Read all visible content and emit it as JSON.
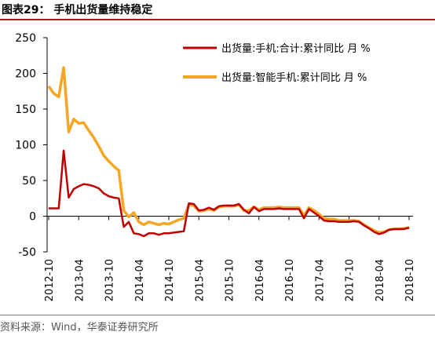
{
  "header": {
    "title": "图表29：  手机出货量维持稳定"
  },
  "footer": {
    "source": "资料来源：Wind，华泰证券研究所"
  },
  "chart_data": {
    "type": "line",
    "title": "",
    "xlabel": "",
    "ylabel": "",
    "ylim": [
      -50,
      250
    ],
    "yticks": [
      -50,
      0,
      50,
      100,
      150,
      200,
      250
    ],
    "xticks": [
      "2012-10",
      "2013-04",
      "2013-10",
      "2014-04",
      "2014-10",
      "2015-04",
      "2015-10",
      "2016-04",
      "2016-10",
      "2017-04",
      "2017-10",
      "2018-04",
      "2018-10"
    ],
    "grid": false,
    "legend_position": "top-right",
    "x": [
      "2012-10",
      "2012-11",
      "2012-12",
      "2013-01",
      "2013-02",
      "2013-03",
      "2013-04",
      "2013-05",
      "2013-06",
      "2013-07",
      "2013-08",
      "2013-09",
      "2013-10",
      "2013-11",
      "2013-12",
      "2014-01",
      "2014-02",
      "2014-03",
      "2014-04",
      "2014-05",
      "2014-06",
      "2014-07",
      "2014-08",
      "2014-09",
      "2014-10",
      "2014-11",
      "2014-12",
      "2015-01",
      "2015-02",
      "2015-03",
      "2015-04",
      "2015-05",
      "2015-06",
      "2015-07",
      "2015-08",
      "2015-09",
      "2015-10",
      "2015-11",
      "2015-12",
      "2016-01",
      "2016-02",
      "2016-03",
      "2016-04",
      "2016-05",
      "2016-06",
      "2016-07",
      "2016-08",
      "2016-09",
      "2016-10",
      "2016-11",
      "2016-12",
      "2017-01",
      "2017-02",
      "2017-03",
      "2017-04",
      "2017-05",
      "2017-06",
      "2017-07",
      "2017-08",
      "2017-09",
      "2017-10",
      "2017-11",
      "2017-12",
      "2018-01",
      "2018-02",
      "2018-03",
      "2018-04",
      "2018-05",
      "2018-06",
      "2018-07",
      "2018-08",
      "2018-09",
      "2018-10"
    ],
    "series": [
      {
        "name": "出货量:手机:合计:累计同比 月 %",
        "color": "#c00000",
        "values": [
          11,
          11,
          11,
          92,
          26,
          38,
          42,
          45,
          44,
          42,
          39,
          32,
          28,
          26,
          25,
          -15,
          -8,
          -24,
          -25,
          -28,
          -24,
          -24,
          -26,
          -24,
          -24,
          -23,
          -22,
          -21,
          18,
          17,
          8,
          9,
          12,
          9,
          14,
          15,
          15,
          15,
          17,
          9,
          4,
          13,
          7,
          10,
          10,
          10,
          11,
          10,
          10,
          10,
          10,
          -3,
          10,
          5,
          0,
          -6,
          -7,
          -7,
          -8,
          -8,
          -8,
          -7,
          -8,
          -13,
          -17,
          -22,
          -25,
          -23,
          -19,
          -18,
          -18,
          -18,
          -16
        ]
      },
      {
        "name": "出货量:智能手机:累计同比 月 %",
        "color": "#f5a623",
        "values": [
          182,
          172,
          167,
          208,
          118,
          136,
          130,
          131,
          120,
          110,
          98,
          85,
          77,
          70,
          64,
          8,
          -1,
          5,
          -8,
          -12,
          -8,
          -10,
          -12,
          -10,
          -11,
          -8,
          -5,
          -3,
          16,
          15,
          7,
          8,
          10,
          8,
          13,
          14,
          14,
          14,
          16,
          8,
          8,
          13,
          9,
          12,
          12,
          12,
          13,
          12,
          12,
          12,
          12,
          1,
          12,
          8,
          3,
          -3,
          -4,
          -4,
          -6,
          -6,
          -6,
          -6,
          -7,
          -12,
          -16,
          -20,
          -23,
          -22,
          -19,
          -18,
          -18,
          -17,
          -16
        ]
      }
    ]
  }
}
